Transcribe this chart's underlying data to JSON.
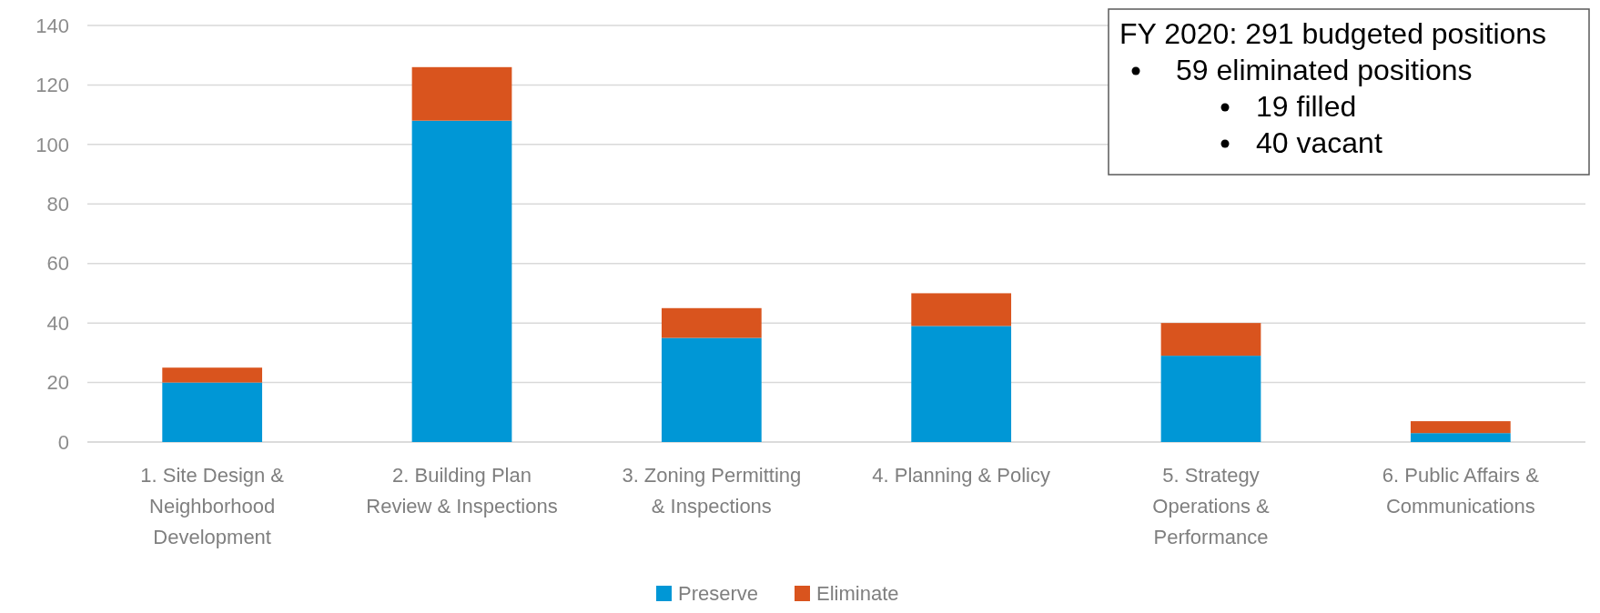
{
  "chart_data": {
    "type": "bar",
    "stacked": true,
    "categories": [
      "1. Site Design & Neighborhood Development",
      "2. Building Plan Review & Inspections",
      "3. Zoning Permitting & Inspections",
      "4. Planning & Policy",
      "5. Strategy Operations & Performance",
      "6. Public Affairs & Communications"
    ],
    "series": [
      {
        "name": "Preserve",
        "color": "#0097d6",
        "values": [
          20,
          108,
          35,
          39,
          29,
          3
        ]
      },
      {
        "name": "Eliminate",
        "color": "#d9541e",
        "values": [
          5,
          18,
          10,
          11,
          11,
          4
        ]
      }
    ],
    "ylim": [
      0,
      140
    ],
    "yticks": [
      0,
      20,
      40,
      60,
      80,
      100,
      120,
      140
    ],
    "grid": "y",
    "legend": "bottom",
    "annotations": [
      "FY 2020: 291 budgeted positions",
      "59 eliminated positions",
      "19 filled",
      "40 vacant"
    ]
  }
}
